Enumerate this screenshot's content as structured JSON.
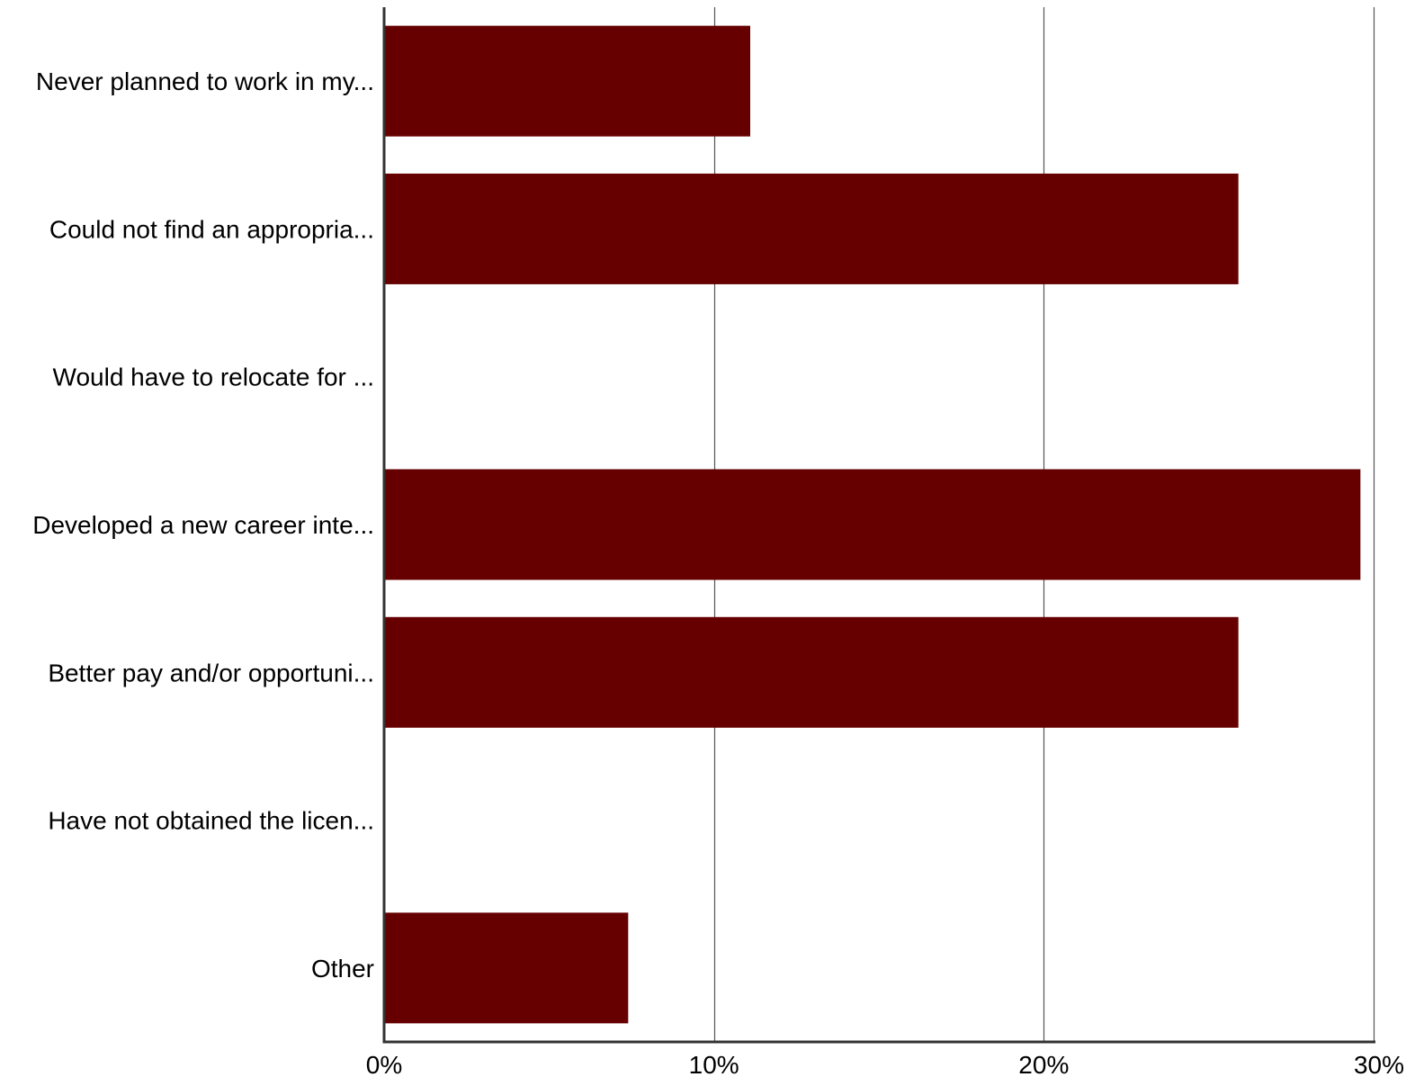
{
  "chart_data": {
    "type": "bar",
    "orientation": "horizontal",
    "categories": [
      "Never planned to work in my...",
      "Could not find an appropria...",
      "Would have to relocate for ...",
      "Developed a new career inte...",
      "Better pay and/or opportuni...",
      "Have not obtained the licen...",
      "Other"
    ],
    "values": [
      11.1,
      25.9,
      0,
      29.6,
      25.9,
      0,
      7.4
    ],
    "xlim": [
      0,
      30
    ],
    "xticks": [
      0,
      10,
      20,
      30
    ],
    "xtick_labels": [
      "0%",
      "10%",
      "20%",
      "30%"
    ],
    "title": "",
    "xlabel": "",
    "ylabel": "",
    "grid": "vertical",
    "legend": "none",
    "colors": {
      "bar": "#660000",
      "axis": "#333333",
      "grid": "#555555",
      "text": "#000000"
    }
  }
}
